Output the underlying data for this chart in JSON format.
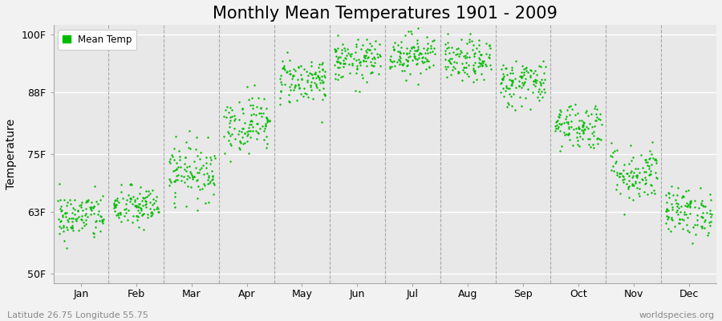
{
  "title": "Monthly Mean Temperatures 1901 - 2009",
  "ylabel": "Temperature",
  "ytick_labels": [
    "50F",
    "63F",
    "75F",
    "88F",
    "100F"
  ],
  "ytick_values": [
    50,
    63,
    75,
    88,
    100
  ],
  "ylim": [
    48,
    102
  ],
  "months": [
    "Jan",
    "Feb",
    "Mar",
    "Apr",
    "May",
    "Jun",
    "Jul",
    "Aug",
    "Sep",
    "Oct",
    "Nov",
    "Dec"
  ],
  "dot_color": "#00bb00",
  "dot_size": 3,
  "background_color": "#f2f2f2",
  "plot_bg_color": "#e8e8e8",
  "legend_label": "Mean Temp",
  "subtitle_left": "Latitude 26.75 Longitude 55.75",
  "subtitle_right": "worldspecies.org",
  "monthly_means": [
    62.0,
    64.0,
    71.5,
    81.5,
    90.5,
    94.5,
    96.0,
    94.5,
    90.0,
    81.0,
    71.0,
    63.0
  ],
  "monthly_stds": [
    2.5,
    2.2,
    3.0,
    3.0,
    2.5,
    2.2,
    2.2,
    2.2,
    2.5,
    2.5,
    3.0,
    2.5
  ],
  "n_years": 109,
  "seed": 42,
  "title_fontsize": 15,
  "axis_label_fontsize": 10,
  "tick_fontsize": 9
}
